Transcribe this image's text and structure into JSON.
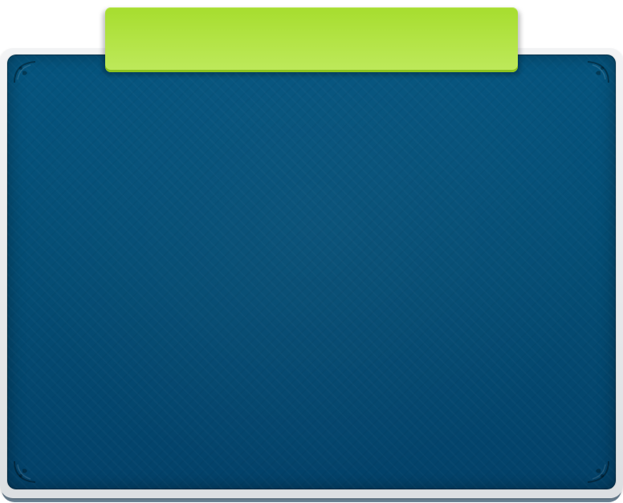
{
  "title_tab": {
    "label": ""
  },
  "colors": {
    "tab_green": "#b0e13f",
    "panel_blue": "#044d74",
    "frame_grey": "#e6e8ea",
    "frame_shadow": "#6f8597"
  },
  "decorations": {
    "corner_ornament_icon": "scroll-ornament-icon"
  }
}
